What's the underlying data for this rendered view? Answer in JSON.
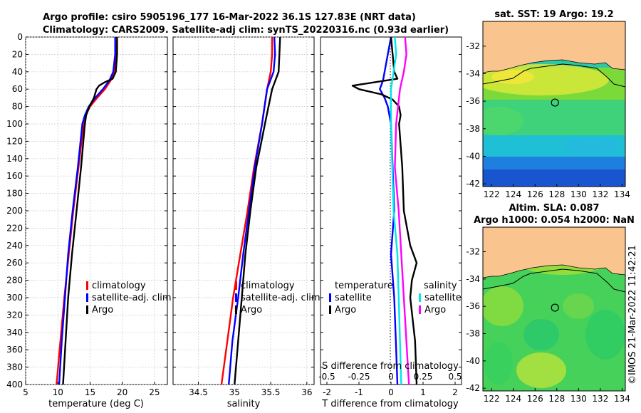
{
  "figure": {
    "title_line1": "Argo profile: csiro 5905196_177 16-Mar-2022 36.1S 127.83E (NRT data)",
    "title_line2": "Climatology: CARS2009. Satellite-adj clim: synTS_20220316.nc (0.93d earlier)",
    "watermark": "©IMOS 21-Mar-2022 11:42:21"
  },
  "colors": {
    "climatology": "#ff0000",
    "satellite": "#0000ff",
    "argo": "#000000",
    "sat_salinity": "#00e5ee",
    "argo_salinity": "#ff00ff",
    "land": "#f9c48e"
  },
  "chart_data": [
    {
      "id": "temperature",
      "type": "line",
      "xlabel": "temperature (deg C)",
      "xlim": [
        5,
        27
      ],
      "xticks": [
        5,
        10,
        15,
        20,
        25
      ],
      "ylim": [
        0,
        400
      ],
      "yticks": [
        0,
        20,
        40,
        60,
        80,
        100,
        120,
        140,
        160,
        180,
        200,
        220,
        240,
        260,
        280,
        300,
        320,
        340,
        360,
        380,
        400
      ],
      "grid": true,
      "legend": [
        "climatology",
        "satellite-adj. clim",
        "Argo"
      ],
      "series": [
        {
          "name": "climatology",
          "depth": [
            0,
            20,
            40,
            50,
            60,
            70,
            80,
            90,
            100,
            150,
            200,
            250,
            300,
            350,
            400
          ],
          "values": [
            19.2,
            19.1,
            18.7,
            18.2,
            17.3,
            16.1,
            15.0,
            14.3,
            14.0,
            13.2,
            12.4,
            11.7,
            11.0,
            10.4,
            9.8
          ]
        },
        {
          "name": "satellite-adj. clim",
          "depth": [
            0,
            20,
            40,
            50,
            60,
            70,
            80,
            90,
            100,
            150,
            200,
            250,
            300,
            350,
            400
          ],
          "values": [
            18.9,
            18.9,
            18.6,
            18.0,
            17.0,
            15.8,
            14.8,
            14.2,
            13.8,
            13.1,
            12.3,
            11.6,
            11.1,
            10.6,
            10.2
          ]
        },
        {
          "name": "Argo",
          "depth": [
            0,
            20,
            40,
            48,
            52,
            56,
            60,
            70,
            80,
            90,
            100,
            150,
            200,
            250,
            300,
            350,
            400
          ],
          "values": [
            19.2,
            19.2,
            19.0,
            18.5,
            17.3,
            16.4,
            16.0,
            15.6,
            14.9,
            14.4,
            14.2,
            13.6,
            12.9,
            12.2,
            11.6,
            11.2,
            10.8
          ]
        }
      ]
    },
    {
      "id": "salinity",
      "type": "line",
      "xlabel": "salinity",
      "xlim": [
        34.15,
        36.1
      ],
      "xticks": [
        34.5,
        35,
        35.5,
        36
      ],
      "ylim": [
        0,
        400
      ],
      "grid": true,
      "legend": [
        "climatology",
        "satellite-adj. clim",
        "Argo"
      ],
      "series": [
        {
          "name": "climatology",
          "depth": [
            0,
            20,
            40,
            60,
            100,
            150,
            200,
            250,
            300,
            350,
            400
          ],
          "values": [
            35.52,
            35.52,
            35.5,
            35.45,
            35.38,
            35.27,
            35.18,
            35.08,
            34.98,
            34.9,
            34.82
          ]
        },
        {
          "name": "satellite-adj. clim",
          "depth": [
            0,
            20,
            40,
            60,
            100,
            150,
            200,
            250,
            300,
            350,
            400
          ],
          "values": [
            35.55,
            35.56,
            35.54,
            35.45,
            35.38,
            35.28,
            35.2,
            35.12,
            35.05,
            34.97,
            34.92
          ]
        },
        {
          "name": "Argo",
          "depth": [
            0,
            20,
            40,
            60,
            80,
            100,
            150,
            200,
            250,
            300,
            350,
            400
          ],
          "values": [
            35.63,
            35.62,
            35.61,
            35.52,
            35.47,
            35.42,
            35.3,
            35.22,
            35.15,
            35.1,
            35.05,
            35.0
          ]
        }
      ]
    },
    {
      "id": "difference",
      "type": "line",
      "xlabel": "T difference from climatology",
      "xlabel_top": "S difference from climatology",
      "xlim": [
        -2.2,
        2.2
      ],
      "xticks": [
        -2,
        -1,
        0,
        1,
        2
      ],
      "xticks_s": [
        "-0.5",
        "-0.25",
        "0",
        "0.25",
        "0.5"
      ],
      "ylim": [
        0,
        400
      ],
      "legend_temperature_title": "temperature",
      "legend_salinity_title": "salinity",
      "legend_temperature": [
        "satellite",
        "Argo"
      ],
      "legend_salinity": [
        "satellite",
        "Argo"
      ],
      "series": [
        {
          "name": "temperature satellite",
          "depth": [
            0,
            20,
            40,
            50,
            60,
            70,
            80,
            100,
            150,
            200,
            250,
            300,
            350,
            400
          ],
          "values": [
            0.0,
            -0.1,
            -0.2,
            -0.25,
            -0.35,
            -0.2,
            -0.1,
            0.0,
            0.05,
            0.1,
            0.0,
            0.1,
            0.15,
            0.2
          ]
        },
        {
          "name": "temperature Argo",
          "depth": [
            0,
            20,
            40,
            48,
            52,
            56,
            60,
            66,
            72,
            80,
            90,
            100,
            150,
            200,
            240,
            260,
            280,
            300,
            350,
            400
          ],
          "values": [
            0.0,
            0.05,
            0.1,
            0.2,
            -0.5,
            -1.2,
            -1.0,
            -0.3,
            0.05,
            0.25,
            0.3,
            0.25,
            0.35,
            0.4,
            0.6,
            0.8,
            0.65,
            0.6,
            0.75,
            0.8
          ]
        },
        {
          "name": "salinity satellite",
          "depth": [
            0,
            20,
            40,
            60,
            100,
            150,
            200,
            250,
            300,
            350,
            400
          ],
          "values": [
            0.03,
            0.04,
            0.02,
            0.0,
            0.0,
            0.01,
            0.02,
            0.05,
            0.06,
            0.07,
            0.08
          ]
        },
        {
          "name": "salinity Argo",
          "depth": [
            0,
            20,
            40,
            60,
            100,
            150,
            200,
            250,
            300,
            350,
            400
          ],
          "values": [
            0.11,
            0.12,
            0.1,
            0.07,
            0.04,
            0.03,
            0.06,
            0.08,
            0.1,
            0.12,
            0.14
          ]
        }
      ]
    },
    {
      "id": "sst_map",
      "type": "heatmap",
      "title": "sat. SST: 19 Argo: 19.2",
      "xticks": [
        122,
        124,
        126,
        128,
        130,
        132,
        134
      ],
      "yticks": [
        -32,
        -34,
        -36,
        -38,
        -40,
        -42
      ],
      "xlim": [
        121.2,
        134.3
      ],
      "ylim": [
        -42.2,
        -30.2
      ],
      "profile_lon": 127.83,
      "profile_lat": -36.1
    },
    {
      "id": "sla_map",
      "type": "heatmap",
      "title_line1": "Altim. SLA: 0.087",
      "title_line2": "Argo h1000: 0.054 h2000: NaN",
      "xticks": [
        122,
        124,
        126,
        128,
        130,
        132,
        134
      ],
      "yticks": [
        -32,
        -34,
        -36,
        -38,
        -40,
        -42
      ],
      "xlim": [
        121.2,
        134.3
      ],
      "ylim": [
        -42.2,
        -30.2
      ],
      "profile_lon": 127.83,
      "profile_lat": -36.1
    }
  ]
}
